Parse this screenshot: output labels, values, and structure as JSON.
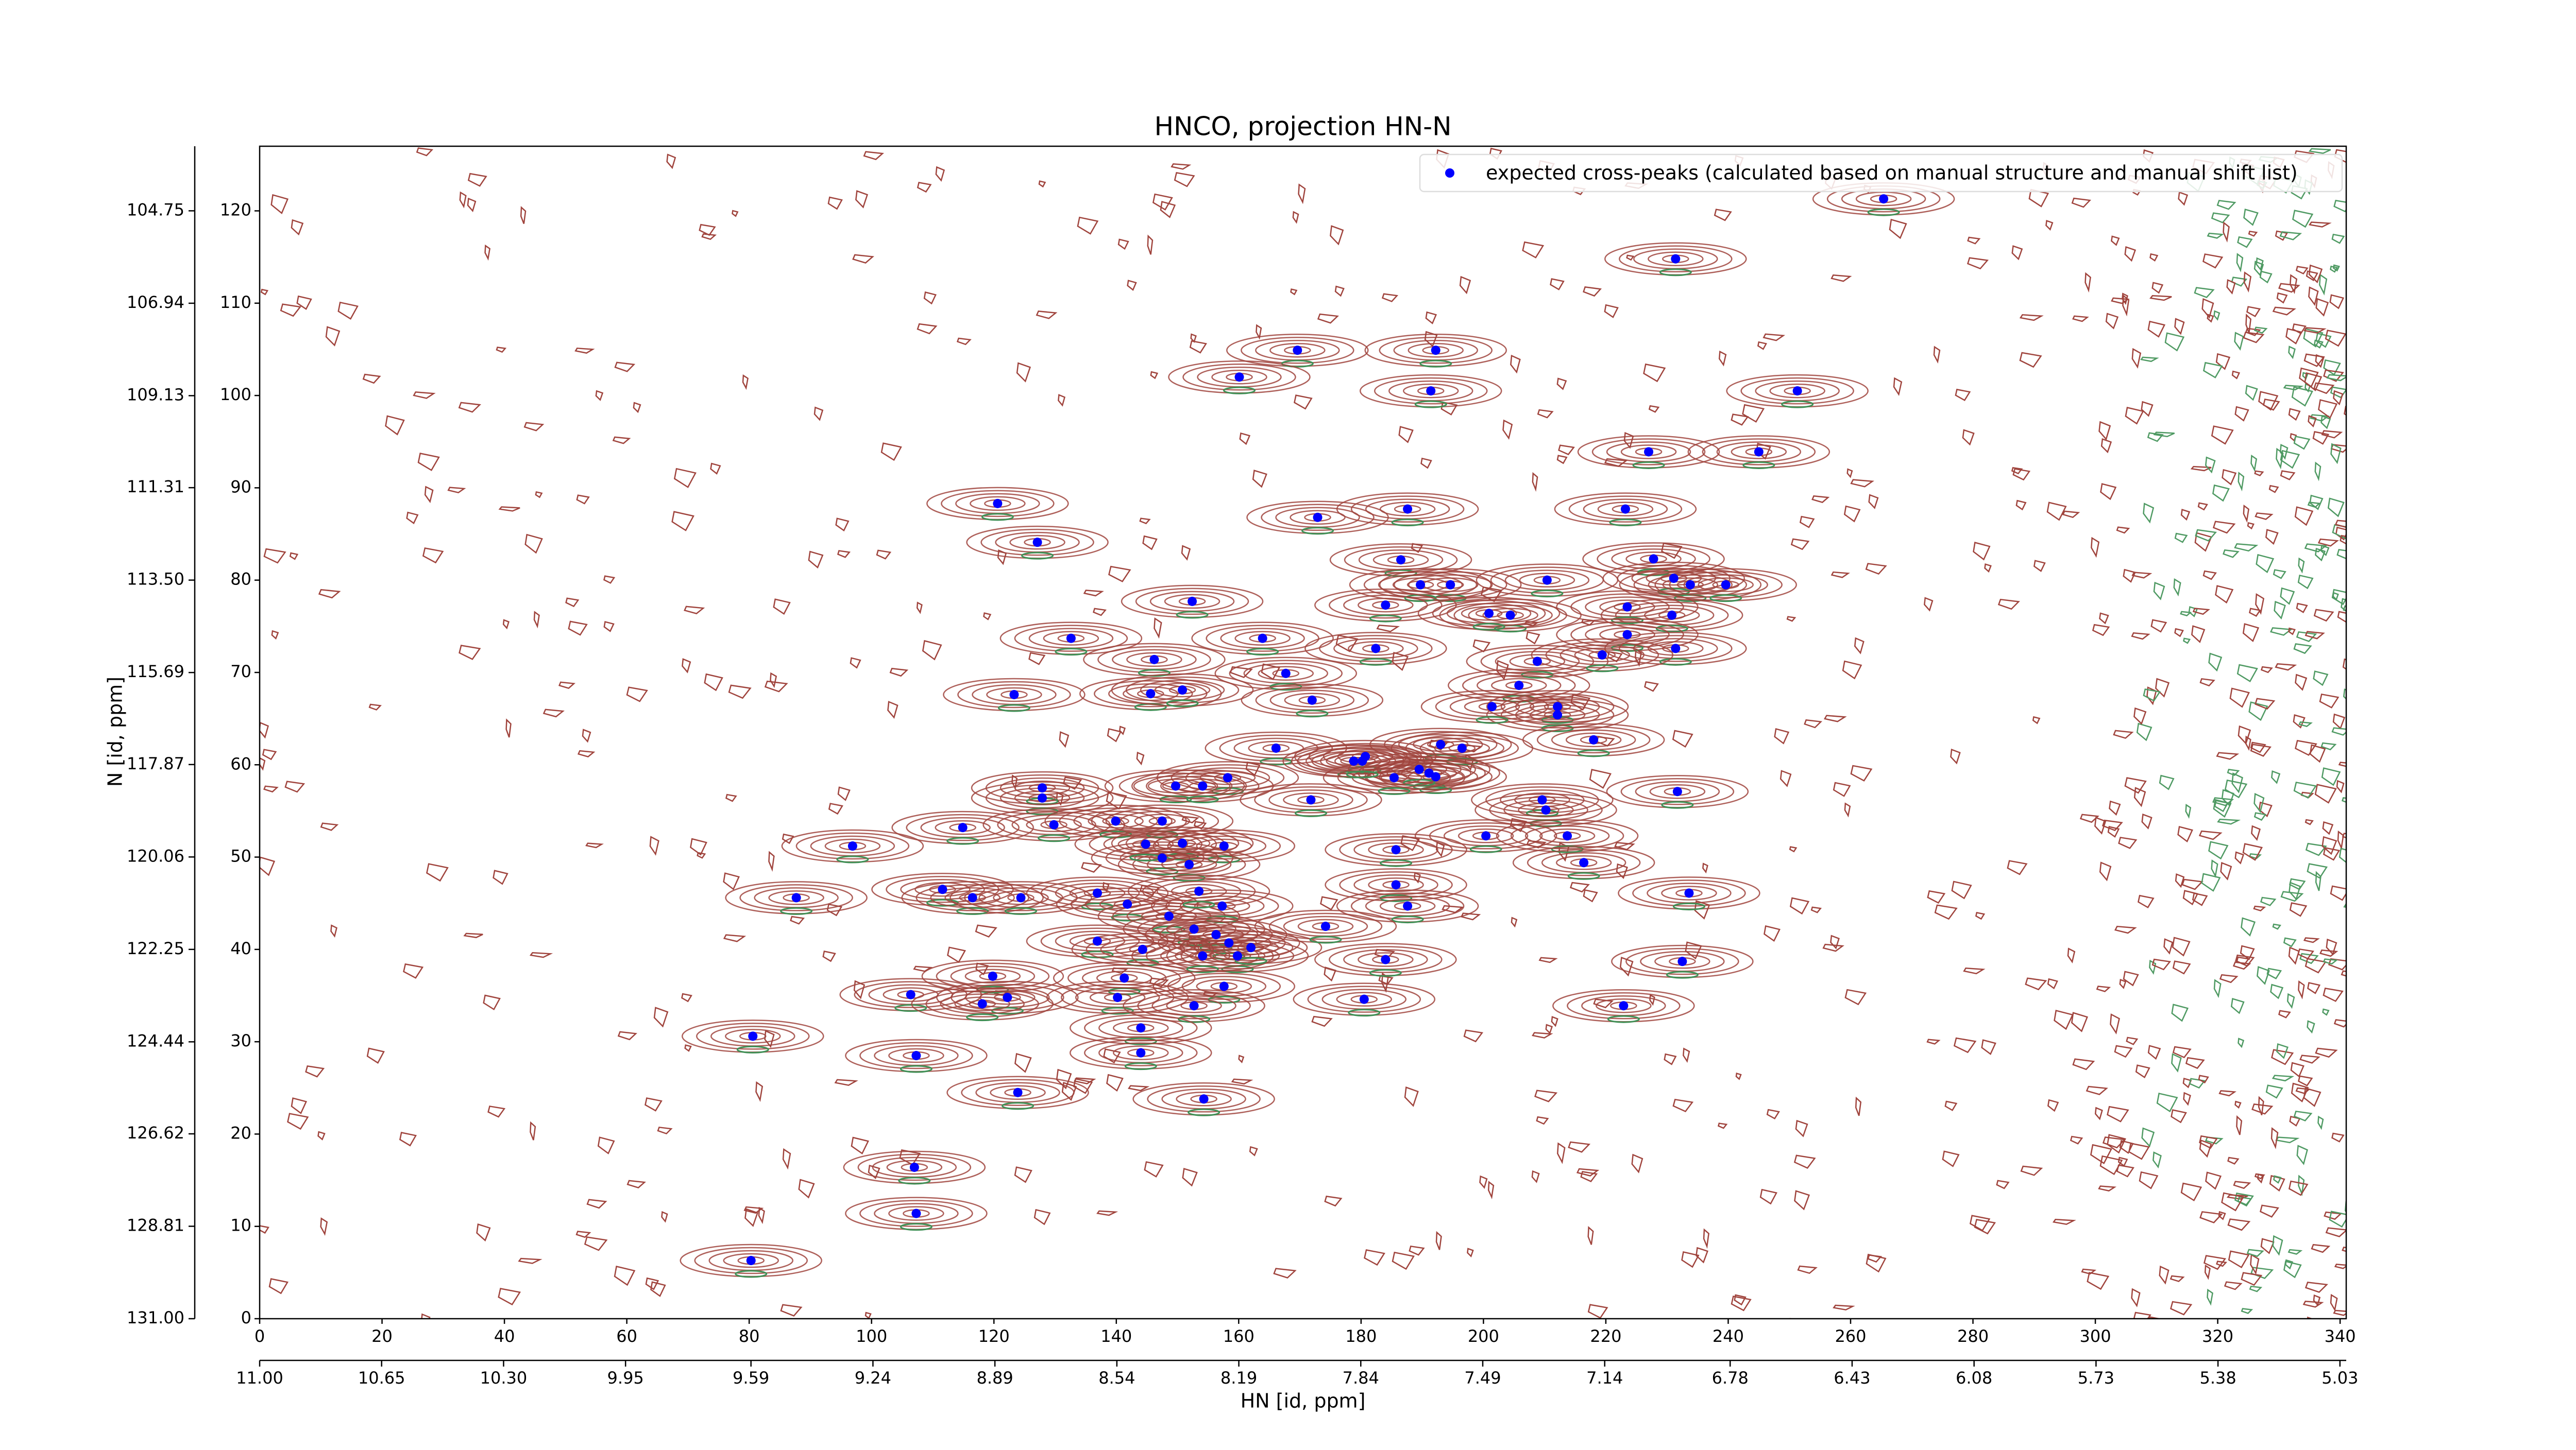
{
  "chart_data": {
    "type": "scatter",
    "title": "HNCO, projection HN-N",
    "x_label": "HN [id, ppm]",
    "y_label": "N [id, ppm]",
    "xlim": [
      0,
      341
    ],
    "ylim": [
      0,
      127
    ],
    "xticks": [
      0,
      20,
      40,
      60,
      80,
      100,
      120,
      140,
      160,
      180,
      200,
      220,
      240,
      260,
      280,
      300,
      320,
      340
    ],
    "yticks": [
      0,
      10,
      20,
      30,
      40,
      50,
      60,
      70,
      80,
      90,
      100,
      110,
      120
    ],
    "x2lim": [
      11.0,
      5.012
    ],
    "x2ticks": [
      {
        "value": 11.0,
        "label": "11.00"
      },
      10.65,
      {
        "value": 10.3,
        "label": "10.30"
      },
      9.95,
      9.59,
      9.24,
      8.89,
      8.54,
      8.19,
      7.84,
      7.49,
      7.14,
      6.78,
      6.43,
      6.08,
      5.73,
      5.38,
      5.03
    ],
    "y2lim": [
      131.0,
      103.22
    ],
    "y2ticks": [
      {
        "value": 131.0,
        "label": "131.00"
      },
      128.81,
      126.62,
      124.44,
      122.25,
      120.06,
      117.87,
      115.69,
      {
        "value": 113.5,
        "label": "113.50"
      },
      111.31,
      109.13,
      106.94,
      104.75
    ],
    "legend": "upper right",
    "series": [
      {
        "name": "expected cross-peaks (calculated based on manual structure and manual shift list)",
        "color": "#0000ff",
        "x": [
          265.4,
          231.4,
          169.6,
          192.2,
          160.1,
          191.4,
          251.3,
          227.0,
          245.0,
          223.2,
          187.6,
          120.6,
          172.9,
          127.1,
          227.8,
          186.5,
          210.4,
          231.1,
          233.8,
          194.6,
          189.7,
          152.4,
          184.0,
          204.4,
          200.9,
          230.8,
          223.5,
          132.6,
          163.9,
          223.5,
          231.4,
          182.4,
          208.8,
          146.2,
          219.4,
          167.7,
          205.8,
          145.6,
          150.8,
          123.3,
          212.1,
          212.1,
          201.4,
          193.0,
          166.1,
          218.0,
          196.5,
          180.7,
          178.8,
          191.1,
          192.2,
          189.5,
          185.4,
          127.9,
          127.9,
          158.2,
          149.7,
          154.1,
          171.8,
          209.6,
          210.2,
          231.7,
          129.8,
          114.9,
          139.9,
          147.5,
          150.8,
          157.6,
          213.7,
          96.9,
          185.7,
          200.4,
          147.5,
          151.9,
          216.4,
          136.9,
          111.6,
          185.7,
          141.8,
          148.6,
          233.6,
          87.7,
          116.5,
          124.4,
          187.6,
          157.3,
          136.9,
          152.7,
          156.3,
          144.3,
          158.4,
          159.8,
          119.8,
          154.1,
          162.0,
          184.0,
          141.3,
          157.6,
          106.4,
          122.2,
          140.2,
          180.5,
          118.1,
          152.7,
          222.9,
          232.5,
          144.0,
          80.6,
          144.0,
          107.3,
          123.9,
          154.3,
          107.0,
          107.3,
          80.3,
          174.2,
          153.5,
          144.8,
          172.0,
          180.2,
          239.6
        ],
        "values": [
          121.3,
          114.8,
          104.9,
          104.9,
          102.0,
          100.5,
          100.5,
          93.9,
          93.9,
          87.7,
          87.7,
          88.3,
          86.8,
          84.1,
          82.3,
          82.2,
          80.0,
          80.2,
          79.5,
          79.5,
          79.5,
          77.7,
          77.3,
          76.2,
          76.4,
          76.2,
          77.1,
          73.7,
          73.7,
          74.1,
          72.6,
          72.6,
          71.2,
          71.4,
          71.9,
          69.9,
          68.6,
          67.7,
          68.1,
          67.6,
          66.3,
          65.4,
          66.3,
          62.2,
          61.8,
          62.7,
          61.8,
          60.9,
          60.4,
          59.1,
          58.7,
          59.5,
          58.6,
          57.5,
          56.4,
          58.6,
          57.7,
          57.7,
          56.2,
          56.2,
          55.1,
          57.1,
          53.5,
          53.2,
          53.9,
          53.9,
          51.5,
          51.2,
          52.3,
          51.2,
          50.8,
          52.3,
          49.9,
          49.2,
          49.4,
          46.1,
          46.5,
          47.0,
          44.9,
          43.6,
          46.1,
          45.6,
          45.6,
          45.6,
          44.7,
          44.7,
          40.9,
          42.2,
          41.6,
          40.0,
          40.7,
          39.3,
          37.1,
          39.3,
          40.2,
          38.9,
          36.9,
          36.0,
          35.1,
          34.8,
          34.8,
          34.6,
          34.1,
          33.9,
          33.9,
          38.7,
          31.5,
          30.6,
          28.8,
          28.5,
          24.5,
          23.8,
          16.4,
          11.4,
          6.3,
          42.5,
          46.3,
          51.4,
          67.0,
          60.4,
          79.5
        ]
      }
    ]
  }
}
